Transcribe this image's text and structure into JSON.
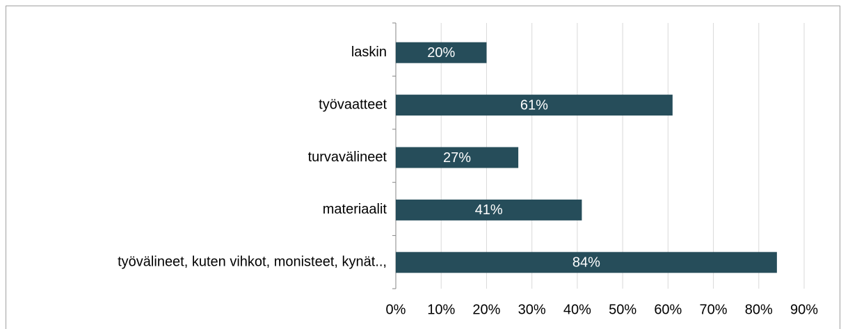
{
  "chart_data": {
    "type": "bar",
    "orientation": "horizontal",
    "categories": [
      "laskin",
      "työvaatteet",
      "turvavälineet",
      "materiaalit",
      "työvälineet, kuten vihkot, monisteet, kynät..,"
    ],
    "values": [
      20,
      61,
      27,
      41,
      84
    ],
    "value_labels": [
      "20%",
      "61%",
      "27%",
      "41%",
      "84%"
    ],
    "color": "#264d5a",
    "xlim": [
      0,
      90
    ],
    "xticks": [
      {
        "value": 0,
        "label": "0%"
      },
      {
        "value": 10,
        "label": "10%"
      },
      {
        "value": 20,
        "label": "20%"
      },
      {
        "value": 30,
        "label": "30%"
      },
      {
        "value": 40,
        "label": "40%"
      },
      {
        "value": 50,
        "label": "50%"
      },
      {
        "value": 60,
        "label": "60%"
      },
      {
        "value": 70,
        "label": "70%"
      },
      {
        "value": 80,
        "label": "80%"
      },
      {
        "value": 90,
        "label": "90%"
      }
    ],
    "grid": true
  }
}
